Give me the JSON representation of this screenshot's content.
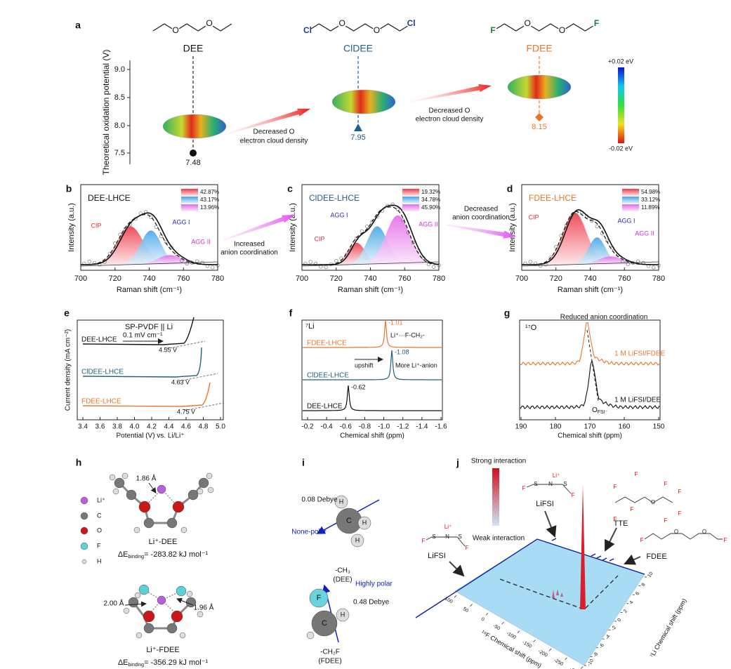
{
  "panel_a": {
    "label": "a",
    "molecules": [
      {
        "name": "DEE",
        "atoms": [
          "O",
          "O"
        ],
        "value": "7.48"
      },
      {
        "name": "ClDEE",
        "atoms": [
          "Cl",
          "O",
          "O",
          "Cl"
        ],
        "value": "7.95"
      },
      {
        "name": "FDEE",
        "atoms": [
          "F",
          "O",
          "O",
          "F"
        ],
        "value": "8.15"
      }
    ],
    "y_axis_title": "Theoretical oxidation potential (V)",
    "yticks": [
      "9.0",
      "8.5",
      "8.0",
      "7.5"
    ],
    "arrow_texts": [
      [
        "Decreased O",
        "electron cloud density"
      ],
      [
        "Decreased O",
        "electron cloud density"
      ]
    ],
    "colorbar": {
      "max": "+0.02 eV",
      "min": "-0.02 eV"
    }
  },
  "raman": {
    "panels": [
      {
        "label": "b",
        "title": "DEE-LHCE",
        "fractions": [
          "42.87%",
          "43.17%",
          "13.96%"
        ],
        "peaks": [
          "CIP",
          "AGG I",
          "AGG II"
        ],
        "x_axis_title": "Raman shift (cm⁻¹)",
        "y_axis_title": "Intensity (a.u.)",
        "xticks": [
          "700",
          "720",
          "740",
          "760",
          "780"
        ]
      },
      {
        "label": "c",
        "title": "ClDEE-LHCE",
        "fractions": [
          "19.32%",
          "34.78%",
          "45.90%"
        ],
        "peaks": [
          "CIP",
          "AGG I",
          "AGG II"
        ],
        "x_axis_title": "Raman shift (cm⁻¹)",
        "y_axis_title": "Intensity (a.u.)",
        "xticks": [
          "700",
          "720",
          "740",
          "760",
          "780"
        ]
      },
      {
        "label": "d",
        "title": "FDEE-LHCE",
        "fractions": [
          "54.98%",
          "33.12%",
          "11.89%"
        ],
        "peaks": [
          "CIP",
          "AGG I",
          "AGG II"
        ],
        "x_axis_title": "Raman shift (cm⁻¹)",
        "y_axis_title": "Intensity (a.u.)",
        "xticks": [
          "700",
          "720",
          "740",
          "760",
          "780"
        ]
      }
    ],
    "arrow_texts": [
      [
        "Increased",
        "anion coordination"
      ],
      [
        "Decreased",
        "anion coordination"
      ]
    ]
  },
  "panel_e": {
    "label": "e",
    "setup": "SP-PVDF || Li",
    "rate": "0.1 mV cm⁻¹",
    "curves": [
      {
        "name": "DEE-LHCE",
        "onset": "4.55 V"
      },
      {
        "name": "ClDEE-LHCE",
        "onset": "4.63 V"
      },
      {
        "name": "FDEE-LHCE",
        "onset": "4.75 V"
      }
    ],
    "y_axis_title": "Current density (mA cm⁻²)",
    "x_axis_title": "Potential (V) vs. Li/Li⁺",
    "xticks": [
      "3.4",
      "3.6",
      "3.8",
      "4.0",
      "4.2",
      "4.4",
      "4.6",
      "4.8",
      "5.0"
    ]
  },
  "panel_f": {
    "label": "f",
    "nucleus": "⁷Li",
    "curves": [
      {
        "name": "FDEE-LHCE",
        "shift": "-1.01"
      },
      {
        "name": "ClDEE-LHCE",
        "shift": "-1.08"
      },
      {
        "name": "DEE-LHCE",
        "shift": "-0.62"
      }
    ],
    "annotations": [
      "Li⁺···F-CH₂-",
      "upshift",
      "More  Li⁺-anion"
    ],
    "x_axis_title": "Chemical shift (ppm)",
    "xticks": [
      "-0.2",
      "-0.4",
      "-0.6",
      "-0.8",
      "-1.0",
      "-1.2",
      "-1.4",
      "-1.6"
    ]
  },
  "panel_g": {
    "label": "g",
    "nucleus": "¹⁷O",
    "title": "Reduced anion coordination",
    "curves": [
      "1 M LiFSI/FDEE",
      "1 M LiFSI/DEE"
    ],
    "peak_label": {
      "main": "O",
      "sub": "FSI⁻"
    },
    "x_axis_title": "Chemical shift (ppm)",
    "xticks": [
      "190",
      "180",
      "170",
      "160",
      "150"
    ]
  },
  "panel_h": {
    "label": "h",
    "legend": [
      "Li⁺",
      "C",
      "O",
      "F",
      "H"
    ],
    "complexes": [
      {
        "distances": [
          "1.86 Å"
        ],
        "name": "Li⁺-DEE",
        "energy": {
          "symbol": "ΔE",
          "sub": "binding",
          "value": "= -283.82 kJ mol⁻¹"
        }
      },
      {
        "distances": [
          "2.00 Å",
          "1.96 Å"
        ],
        "name": "Li⁺-FDEE",
        "energy": {
          "symbol": "ΔE",
          "sub": "binding",
          "value": "= -356.29 kJ mol⁻¹"
        }
      }
    ]
  },
  "panel_i": {
    "label": "i",
    "groups": [
      {
        "dipole": "0.08 Debye",
        "polarity": "None-polar",
        "name": "-CH₃",
        "source": "(DEE)",
        "atoms": [
          "H",
          "C",
          "H",
          "H"
        ]
      },
      {
        "dipole": "0.48 Debye",
        "polarity": "Highly polar",
        "name": "-CH₂F",
        "source": "(FDEE)",
        "atoms": [
          "F",
          "C",
          "H"
        ]
      }
    ]
  },
  "panel_j": {
    "label": "j",
    "colorbar": {
      "max": "Strong interaction",
      "min": "Weak interaction"
    },
    "molecules": [
      "LiFSI",
      "LiFSI",
      "TTE",
      "FDEE"
    ],
    "structures": [
      [
        "Li⁺",
        "F",
        "S",
        "N",
        "S",
        "F"
      ],
      [
        "Li⁺",
        "F",
        "S",
        "N",
        "S",
        "F"
      ],
      [
        "F",
        "F",
        "F",
        "F",
        "O",
        "F",
        "F",
        "F",
        "F"
      ],
      [
        "F",
        "O",
        "O",
        "F"
      ]
    ],
    "x_axis_title": "¹⁹F Chemical shift (ppm)",
    "y_axis_title": "⁷Li Chemical shift (ppm)",
    "xticks": [
      "100",
      "50",
      "0",
      "-50",
      "-100",
      "-150",
      "-200",
      "-250",
      "-300"
    ],
    "yticks": [
      "10",
      "8",
      "6",
      "4",
      "2",
      "0",
      "-2",
      "-4",
      "-6",
      "-8",
      "-10"
    ]
  }
}
